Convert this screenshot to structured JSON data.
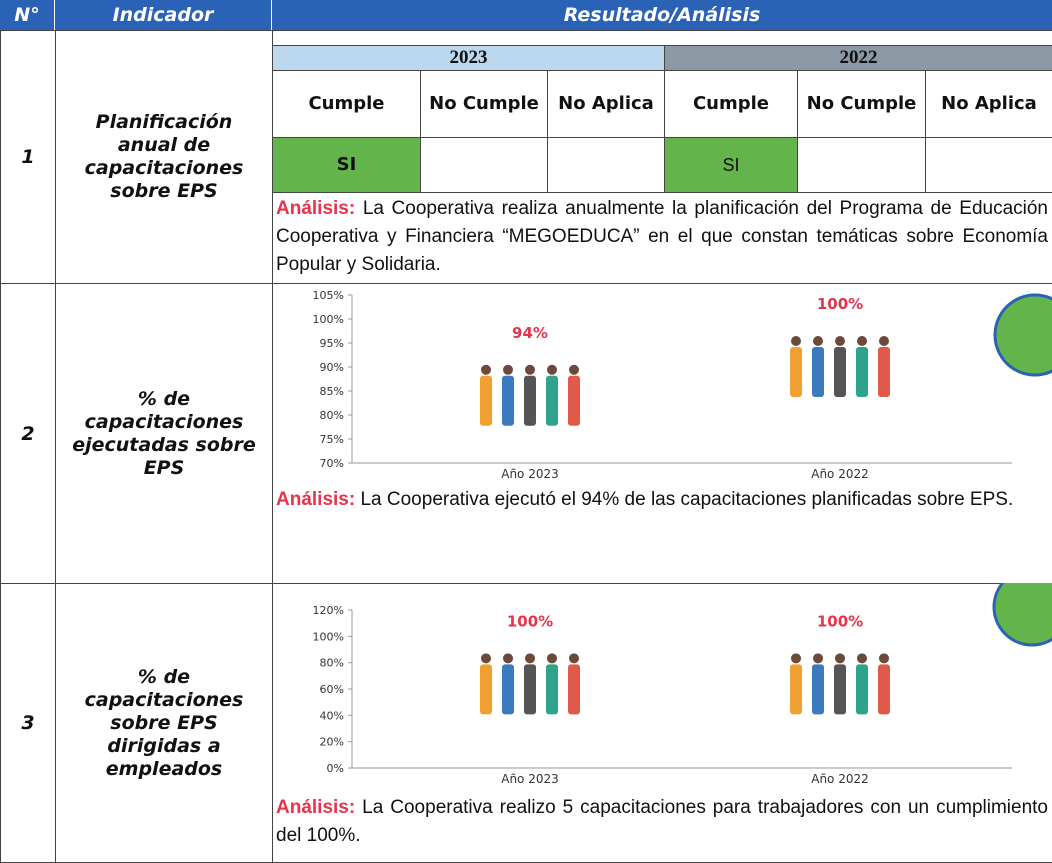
{
  "header": {
    "number": "N°",
    "indicator": "Indicador",
    "result": "Resultado/Análisis"
  },
  "rows": [
    {
      "number": "1",
      "indicator": "Planificación anual de capacitaciones sobre EPS",
      "years": [
        {
          "year": "2023",
          "columns": [
            "Cumple",
            "No Cumple",
            "No Aplica"
          ],
          "answer": "SI"
        },
        {
          "year": "2022",
          "columns": [
            "Cumple",
            "No Cumple",
            "No Aplica"
          ],
          "answer": "SI"
        }
      ],
      "analysis_label": "Análisis:",
      "analysis": "La Cooperativa realiza anualmente la planificación del Programa de Educación Cooperativa y Financiera “MEGOEDUCA” en el que constan temáticas sobre Economía Popular y Solidaria."
    },
    {
      "number": "2",
      "indicator": "% de capacitaciones ejecutadas sobre EPS",
      "chart_data": {
        "type": "pictograph",
        "categories": [
          "Año 2023",
          "Año 2022"
        ],
        "values": [
          94,
          100
        ],
        "value_labels": [
          "94%",
          "100%"
        ],
        "label_color": "#e8334a",
        "ylim": [
          70,
          105
        ],
        "yticks": [
          {
            "value": 70,
            "label": "70%"
          },
          {
            "value": 75,
            "label": "75%"
          },
          {
            "value": 80,
            "label": "80%"
          },
          {
            "value": 85,
            "label": "85%"
          },
          {
            "value": 90,
            "label": "90%"
          },
          {
            "value": 95,
            "label": "95%"
          },
          {
            "value": 100,
            "label": "100%"
          },
          {
            "value": 105,
            "label": "105%"
          }
        ]
      },
      "analysis_label": "Análisis:",
      "analysis": "La Cooperativa ejecutó el 94% de las capacitaciones planificadas sobre EPS."
    },
    {
      "number": "3",
      "indicator": "% de capacitaciones sobre EPS dirigidas a empleados",
      "chart_data": {
        "type": "pictograph",
        "categories": [
          "Año 2023",
          "Año 2022"
        ],
        "values": [
          100,
          100
        ],
        "value_labels": [
          "100%",
          "100%"
        ],
        "label_color": "#e8334a",
        "ylim": [
          0,
          120
        ],
        "yticks": [
          {
            "value": 0,
            "label": "0%"
          },
          {
            "value": 20,
            "label": "20%"
          },
          {
            "value": 40,
            "label": "40%"
          },
          {
            "value": 60,
            "label": "60%"
          },
          {
            "value": 80,
            "label": "80%"
          },
          {
            "value": 100,
            "label": "100%"
          },
          {
            "value": 120,
            "label": "120%"
          }
        ]
      },
      "analysis_label": "Análisis:",
      "analysis": "La Cooperativa realizo 5 capacitaciones para trabajadores con un cumplimiento del 100%."
    }
  ]
}
